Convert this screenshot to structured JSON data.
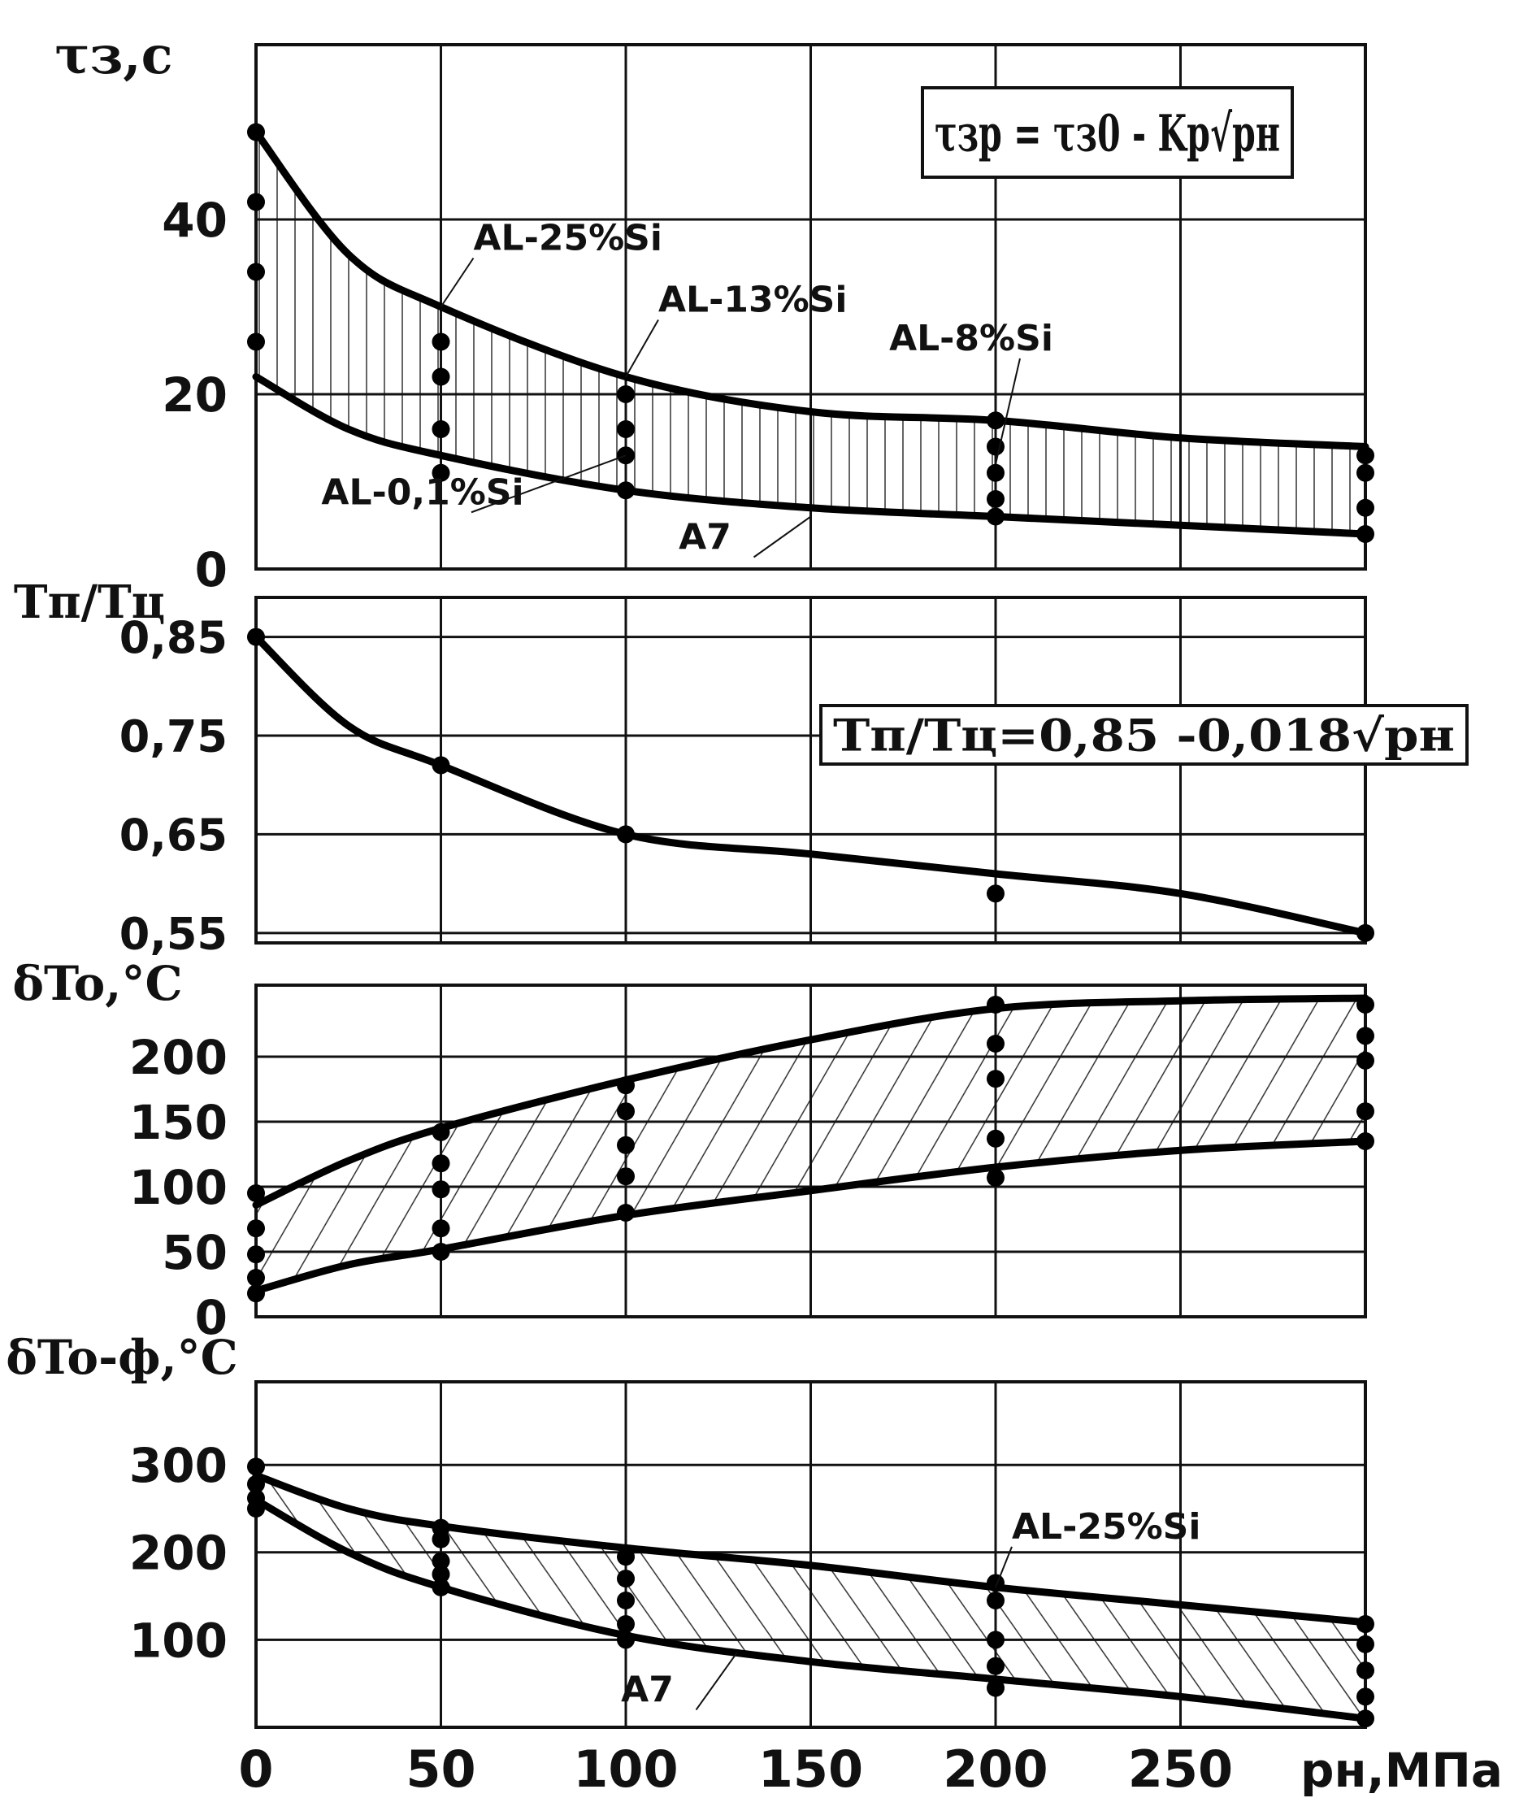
{
  "chart_data": [
    {
      "type": "area",
      "ylabel": "τз,с",
      "formula": "τзр = τз0 - Kр√pн",
      "x_ticks": [
        "0",
        "50",
        "100",
        "150",
        "200",
        "250"
      ],
      "xlim": [
        0,
        300
      ],
      "ylim": [
        0,
        60
      ],
      "y_ticks": [
        {
          "value": 0,
          "label": "0"
        },
        {
          "value": 20,
          "label": "20"
        },
        {
          "value": 40,
          "label": "40"
        }
      ],
      "grid": true,
      "band": "vertical-hatch",
      "series": [
        {
          "name": "AL-25%Si",
          "x": [
            0,
            25,
            50,
            100,
            150,
            200,
            250,
            300
          ],
          "y": [
            50,
            36,
            30,
            22,
            18,
            17,
            15,
            14
          ]
        },
        {
          "name": "A7",
          "x": [
            0,
            25,
            50,
            100,
            150,
            200,
            250,
            300
          ],
          "y": [
            22,
            16,
            13,
            9,
            7,
            6,
            5,
            4
          ]
        }
      ],
      "points": [
        {
          "x": 0,
          "y": 50
        },
        {
          "x": 0,
          "y": 42
        },
        {
          "x": 0,
          "y": 34
        },
        {
          "x": 0,
          "y": 26
        },
        {
          "x": 50,
          "y": 26
        },
        {
          "x": 50,
          "y": 22
        },
        {
          "x": 50,
          "y": 16
        },
        {
          "x": 50,
          "y": 11
        },
        {
          "x": 100,
          "y": 20
        },
        {
          "x": 100,
          "y": 16
        },
        {
          "x": 100,
          "y": 13
        },
        {
          "x": 100,
          "y": 9
        },
        {
          "x": 200,
          "y": 17
        },
        {
          "x": 200,
          "y": 14
        },
        {
          "x": 200,
          "y": 11
        },
        {
          "x": 200,
          "y": 8
        },
        {
          "x": 200,
          "y": 6
        },
        {
          "x": 300,
          "y": 13
        },
        {
          "x": 300,
          "y": 11
        },
        {
          "x": 300,
          "y": 7
        },
        {
          "x": 300,
          "y": 4
        }
      ],
      "annotations": [
        {
          "text": "AL-25%Si",
          "x": 50,
          "y": 30
        },
        {
          "text": "AL-13%Si",
          "x": 100,
          "y": 22
        },
        {
          "text": "AL-8%Si",
          "x": 200,
          "y": 12
        },
        {
          "text": "AL-0,1%Si",
          "x": 100,
          "y": 13
        },
        {
          "text": "A7",
          "x": 150,
          "y": 6
        }
      ]
    },
    {
      "type": "line",
      "ylabel": "Tп/Tц",
      "formula": "Tп/Tц=0,85 -0,018√pн",
      "x_ticks": [
        "0",
        "50",
        "100",
        "150",
        "200",
        "250"
      ],
      "xlim": [
        0,
        300
      ],
      "ylim": [
        0.54,
        0.89
      ],
      "y_ticks": [
        {
          "value": 0.55,
          "label": "0,55"
        },
        {
          "value": 0.65,
          "label": "0,65"
        },
        {
          "value": 0.75,
          "label": "0,75"
        },
        {
          "value": 0.85,
          "label": "0,85"
        }
      ],
      "grid": true,
      "series": [
        {
          "name": "",
          "x": [
            0,
            25,
            50,
            100,
            150,
            200,
            250,
            300
          ],
          "y": [
            0.85,
            0.76,
            0.72,
            0.65,
            0.63,
            0.61,
            0.59,
            0.55
          ]
        }
      ],
      "points": [
        {
          "x": 0,
          "y": 0.85
        },
        {
          "x": 50,
          "y": 0.72
        },
        {
          "x": 100,
          "y": 0.65
        },
        {
          "x": 200,
          "y": 0.59
        },
        {
          "x": 300,
          "y": 0.55
        }
      ]
    },
    {
      "type": "area",
      "ylabel": "δTo,°C",
      "x_ticks": [
        "0",
        "50",
        "100",
        "150",
        "200",
        "250"
      ],
      "xlim": [
        0,
        300
      ],
      "ylim": [
        0,
        255
      ],
      "y_ticks": [
        {
          "value": 0,
          "label": "0"
        },
        {
          "value": 50,
          "label": "50"
        },
        {
          "value": 100,
          "label": "100"
        },
        {
          "value": 150,
          "label": "150"
        },
        {
          "value": 200,
          "label": "200"
        }
      ],
      "grid": true,
      "band": "diagonal-hatch",
      "series": [
        {
          "name": "",
          "x": [
            0,
            25,
            50,
            100,
            150,
            200,
            250,
            300
          ],
          "y": [
            86,
            120,
            145,
            182,
            213,
            237,
            243,
            245
          ]
        },
        {
          "name": "",
          "x": [
            0,
            25,
            50,
            100,
            150,
            200,
            250,
            300
          ],
          "y": [
            20,
            40,
            52,
            78,
            97,
            115,
            128,
            135
          ]
        }
      ],
      "points": [
        {
          "x": 0,
          "y": 95
        },
        {
          "x": 0,
          "y": 68
        },
        {
          "x": 0,
          "y": 48
        },
        {
          "x": 0,
          "y": 30
        },
        {
          "x": 0,
          "y": 18
        },
        {
          "x": 50,
          "y": 142
        },
        {
          "x": 50,
          "y": 118
        },
        {
          "x": 50,
          "y": 98
        },
        {
          "x": 50,
          "y": 68
        },
        {
          "x": 50,
          "y": 50
        },
        {
          "x": 100,
          "y": 178
        },
        {
          "x": 100,
          "y": 158
        },
        {
          "x": 100,
          "y": 132
        },
        {
          "x": 100,
          "y": 108
        },
        {
          "x": 100,
          "y": 80
        },
        {
          "x": 200,
          "y": 240
        },
        {
          "x": 200,
          "y": 210
        },
        {
          "x": 200,
          "y": 183
        },
        {
          "x": 200,
          "y": 137
        },
        {
          "x": 200,
          "y": 107
        },
        {
          "x": 300,
          "y": 240
        },
        {
          "x": 300,
          "y": 216
        },
        {
          "x": 300,
          "y": 197
        },
        {
          "x": 300,
          "y": 158
        },
        {
          "x": 300,
          "y": 135
        }
      ]
    },
    {
      "type": "area",
      "ylabel": "δTo-ф,°C",
      "x_ticks": [
        "0",
        "50",
        "100",
        "150",
        "200",
        "250"
      ],
      "xlabel": "pн,МПа",
      "xlim": [
        0,
        300
      ],
      "ylim": [
        0,
        395
      ],
      "y_ticks": [
        {
          "value": 100,
          "label": "100"
        },
        {
          "value": 200,
          "label": "200"
        },
        {
          "value": 300,
          "label": "300"
        }
      ],
      "grid": true,
      "band": "back-diagonal-hatch",
      "series": [
        {
          "name": "AL-25%Si",
          "x": [
            0,
            25,
            50,
            100,
            150,
            200,
            250,
            300
          ],
          "y": [
            288,
            250,
            230,
            205,
            185,
            160,
            140,
            120
          ]
        },
        {
          "name": "A7",
          "x": [
            0,
            25,
            50,
            100,
            150,
            200,
            250,
            300
          ],
          "y": [
            260,
            200,
            160,
            105,
            75,
            55,
            35,
            10
          ]
        }
      ],
      "points": [
        {
          "x": 0,
          "y": 298
        },
        {
          "x": 0,
          "y": 278
        },
        {
          "x": 0,
          "y": 262
        },
        {
          "x": 0,
          "y": 250
        },
        {
          "x": 50,
          "y": 228
        },
        {
          "x": 50,
          "y": 215
        },
        {
          "x": 50,
          "y": 190
        },
        {
          "x": 50,
          "y": 175
        },
        {
          "x": 50,
          "y": 160
        },
        {
          "x": 100,
          "y": 195
        },
        {
          "x": 100,
          "y": 170
        },
        {
          "x": 100,
          "y": 145
        },
        {
          "x": 100,
          "y": 118
        },
        {
          "x": 100,
          "y": 100
        },
        {
          "x": 200,
          "y": 165
        },
        {
          "x": 200,
          "y": 145
        },
        {
          "x": 200,
          "y": 100
        },
        {
          "x": 200,
          "y": 70
        },
        {
          "x": 200,
          "y": 45
        },
        {
          "x": 300,
          "y": 118
        },
        {
          "x": 300,
          "y": 95
        },
        {
          "x": 300,
          "y": 65
        },
        {
          "x": 300,
          "y": 35
        },
        {
          "x": 300,
          "y": 10
        }
      ],
      "annotations": [
        {
          "text": "AL-25%Si",
          "x": 200,
          "y": 160
        },
        {
          "text": "A7",
          "x": 130,
          "y": 85
        }
      ]
    }
  ]
}
